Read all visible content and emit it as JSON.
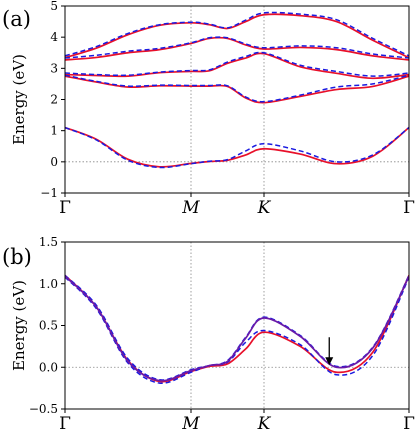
{
  "chart_data": [
    {
      "type": "line",
      "panel_label": "(a)",
      "ylabel": "Energy (eV)",
      "ylim": [
        -1,
        5
      ],
      "yticks": [
        "−1",
        "0",
        "1",
        "2",
        "3",
        "4",
        "5"
      ],
      "x_ticks": [
        "Γ",
        "M",
        "K",
        "Γ"
      ],
      "x": [
        0,
        0.25,
        0.5,
        0.75,
        1,
        1.25,
        1.5,
        1.75,
        2,
        2.25,
        2.5,
        2.75,
        3
      ],
      "series": [
        {
          "color": "#e8102a",
          "style": "solid",
          "bands": [
            [
              1.1,
              0.72,
              0.08,
              -0.16,
              -0.05,
              0.01,
              0.05,
              0.22,
              0.42,
              0.25,
              -0.06,
              0.18,
              1.1
            ],
            [
              2.75,
              2.56,
              2.4,
              2.44,
              2.43,
              2.43,
              2.42,
              2.05,
              1.9,
              2.1,
              2.32,
              2.42,
              2.75
            ],
            [
              2.8,
              2.77,
              2.75,
              2.86,
              2.9,
              2.92,
              3.16,
              3.33,
              3.47,
              3.05,
              2.84,
              2.68,
              2.8
            ],
            [
              3.27,
              3.35,
              3.5,
              3.6,
              3.8,
              3.96,
              3.96,
              3.75,
              3.62,
              3.67,
              3.6,
              3.4,
              3.27
            ],
            [
              3.34,
              3.65,
              4.08,
              4.38,
              4.46,
              4.4,
              4.28,
              4.5,
              4.72,
              4.69,
              4.5,
              3.9,
              3.34
            ]
          ]
        },
        {
          "color": "#1a1ae0",
          "style": "dashed",
          "bands": [
            [
              1.1,
              0.7,
              0.05,
              -0.18,
              -0.06,
              0.02,
              0.07,
              0.35,
              0.58,
              0.35,
              0.0,
              0.22,
              1.1
            ],
            [
              2.78,
              2.58,
              2.43,
              2.46,
              2.45,
              2.45,
              2.44,
              2.08,
              1.93,
              2.14,
              2.4,
              2.5,
              2.78
            ],
            [
              2.85,
              2.8,
              2.78,
              2.88,
              2.93,
              2.95,
              3.2,
              3.38,
              3.5,
              3.1,
              2.9,
              2.75,
              2.85
            ],
            [
              3.33,
              3.42,
              3.55,
              3.64,
              3.82,
              3.98,
              3.98,
              3.78,
              3.66,
              3.72,
              3.66,
              3.46,
              3.33
            ],
            [
              3.4,
              3.7,
              4.12,
              4.4,
              4.48,
              4.42,
              4.3,
              4.55,
              4.78,
              4.74,
              4.56,
              3.96,
              3.4
            ]
          ]
        }
      ]
    },
    {
      "type": "line",
      "panel_label": "(b)",
      "ylabel": "Energy (eV)",
      "ylim": [
        -0.5,
        1.5
      ],
      "yticks": [
        "−0.5",
        "0.0",
        "0.5",
        "1.0",
        "1.5"
      ],
      "x_ticks": [
        "Γ",
        "M",
        "K",
        "Γ"
      ],
      "x": [
        0,
        0.25,
        0.5,
        0.75,
        1,
        1.25,
        1.5,
        1.75,
        2,
        2.25,
        2.5,
        2.75,
        3
      ],
      "series": [
        {
          "color": "#e8102a",
          "style": "solid",
          "bands": [
            [
              1.1,
              0.72,
              0.08,
              -0.17,
              -0.05,
              0.01,
              0.04,
              0.22,
              0.42,
              0.25,
              -0.06,
              0.18,
              1.1
            ]
          ]
        },
        {
          "color": "#1a1ae0",
          "style": "dashed",
          "bands": [
            [
              1.08,
              0.7,
              0.05,
              -0.19,
              -0.06,
              0.02,
              0.06,
              0.3,
              0.44,
              0.27,
              -0.09,
              0.14,
              1.08
            ],
            [
              1.1,
              0.74,
              0.1,
              -0.15,
              -0.03,
              0.02,
              0.08,
              0.36,
              0.6,
              0.38,
              0.01,
              0.24,
              1.1
            ]
          ]
        },
        {
          "color": "#6a1aa8",
          "style": "solid",
          "bands": [
            [
              1.09,
              0.72,
              0.07,
              -0.16,
              -0.04,
              0.02,
              0.07,
              0.35,
              0.59,
              0.37,
              0.0,
              0.23,
              1.09
            ]
          ]
        }
      ],
      "annotation": {
        "type": "arrow",
        "x": 2.45,
        "y": 0.0
      }
    }
  ]
}
